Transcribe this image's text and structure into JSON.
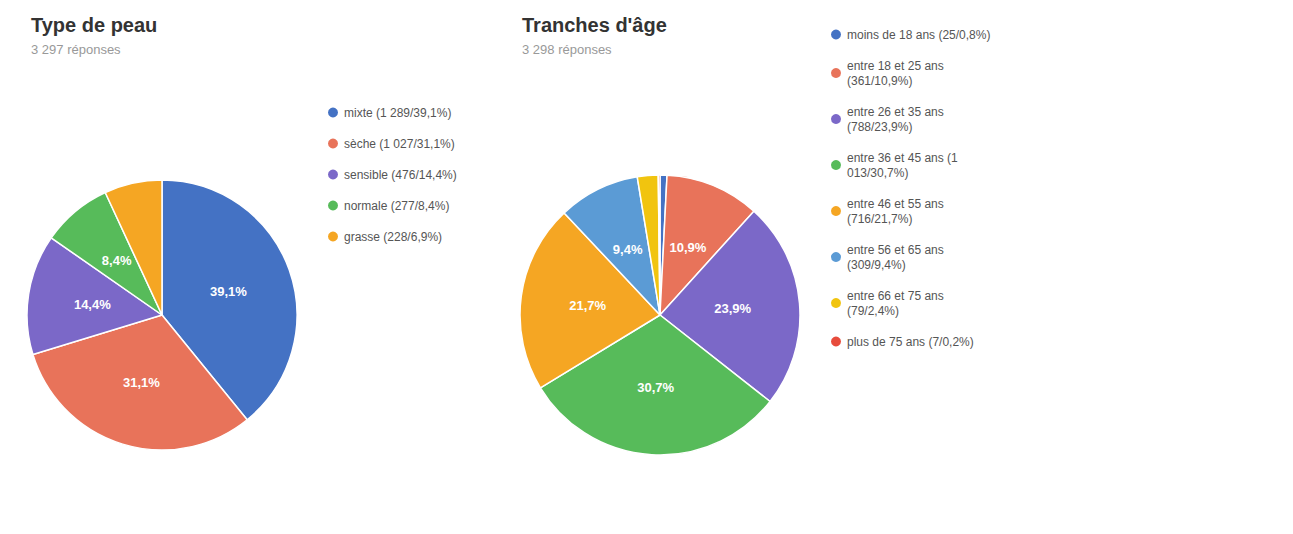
{
  "chart_data": [
    {
      "type": "pie",
      "title": "Type de peau",
      "subtitle": "3 297 réponses",
      "categories": [
        "mixte (1 289/39,1%)",
        "sèche (1 027/31,1%)",
        "sensible (476/14,4%)",
        "normale (277/8,4%)",
        "grasse (228/6,9%)"
      ],
      "values": [
        39.1,
        31.1,
        14.4,
        8.4,
        6.9
      ],
      "value_labels": [
        "39,1%",
        "31,1%",
        "14,4%",
        "8,4%",
        null
      ],
      "colors": [
        "#4472c4",
        "#e8735a",
        "#7b68c8",
        "#57bb5a",
        "#f5a623"
      ],
      "data_labels": true,
      "legend": "right"
    },
    {
      "type": "pie",
      "title": "Tranches d'âge",
      "subtitle": "3 298 réponses",
      "categories": [
        "moins de 18 ans (25/0,8%)",
        "entre 18 et 25 ans\n(361/10,9%)",
        "entre 26 et 35 ans\n(788/23,9%)",
        "entre 36 et 45 ans (1\n013/30,7%)",
        "entre 46 et 55 ans\n(716/21,7%)",
        "entre 56 et 65 ans\n(309/9,4%)",
        "entre 66 et 75 ans\n(79/2,4%)",
        "plus de 75 ans (7/0,2%)"
      ],
      "values": [
        0.8,
        10.9,
        23.9,
        30.7,
        21.7,
        9.4,
        2.4,
        0.2
      ],
      "value_labels": [
        null,
        "10,9%",
        "23,9%",
        "30,7%",
        "21,7%",
        "9,4%",
        null,
        null
      ],
      "colors": [
        "#4472c4",
        "#e8735a",
        "#7b68c8",
        "#57bb5a",
        "#f5a623",
        "#5b9bd5",
        "#f1c40f",
        "#e74c3c"
      ],
      "data_labels": true,
      "legend": "right"
    }
  ]
}
